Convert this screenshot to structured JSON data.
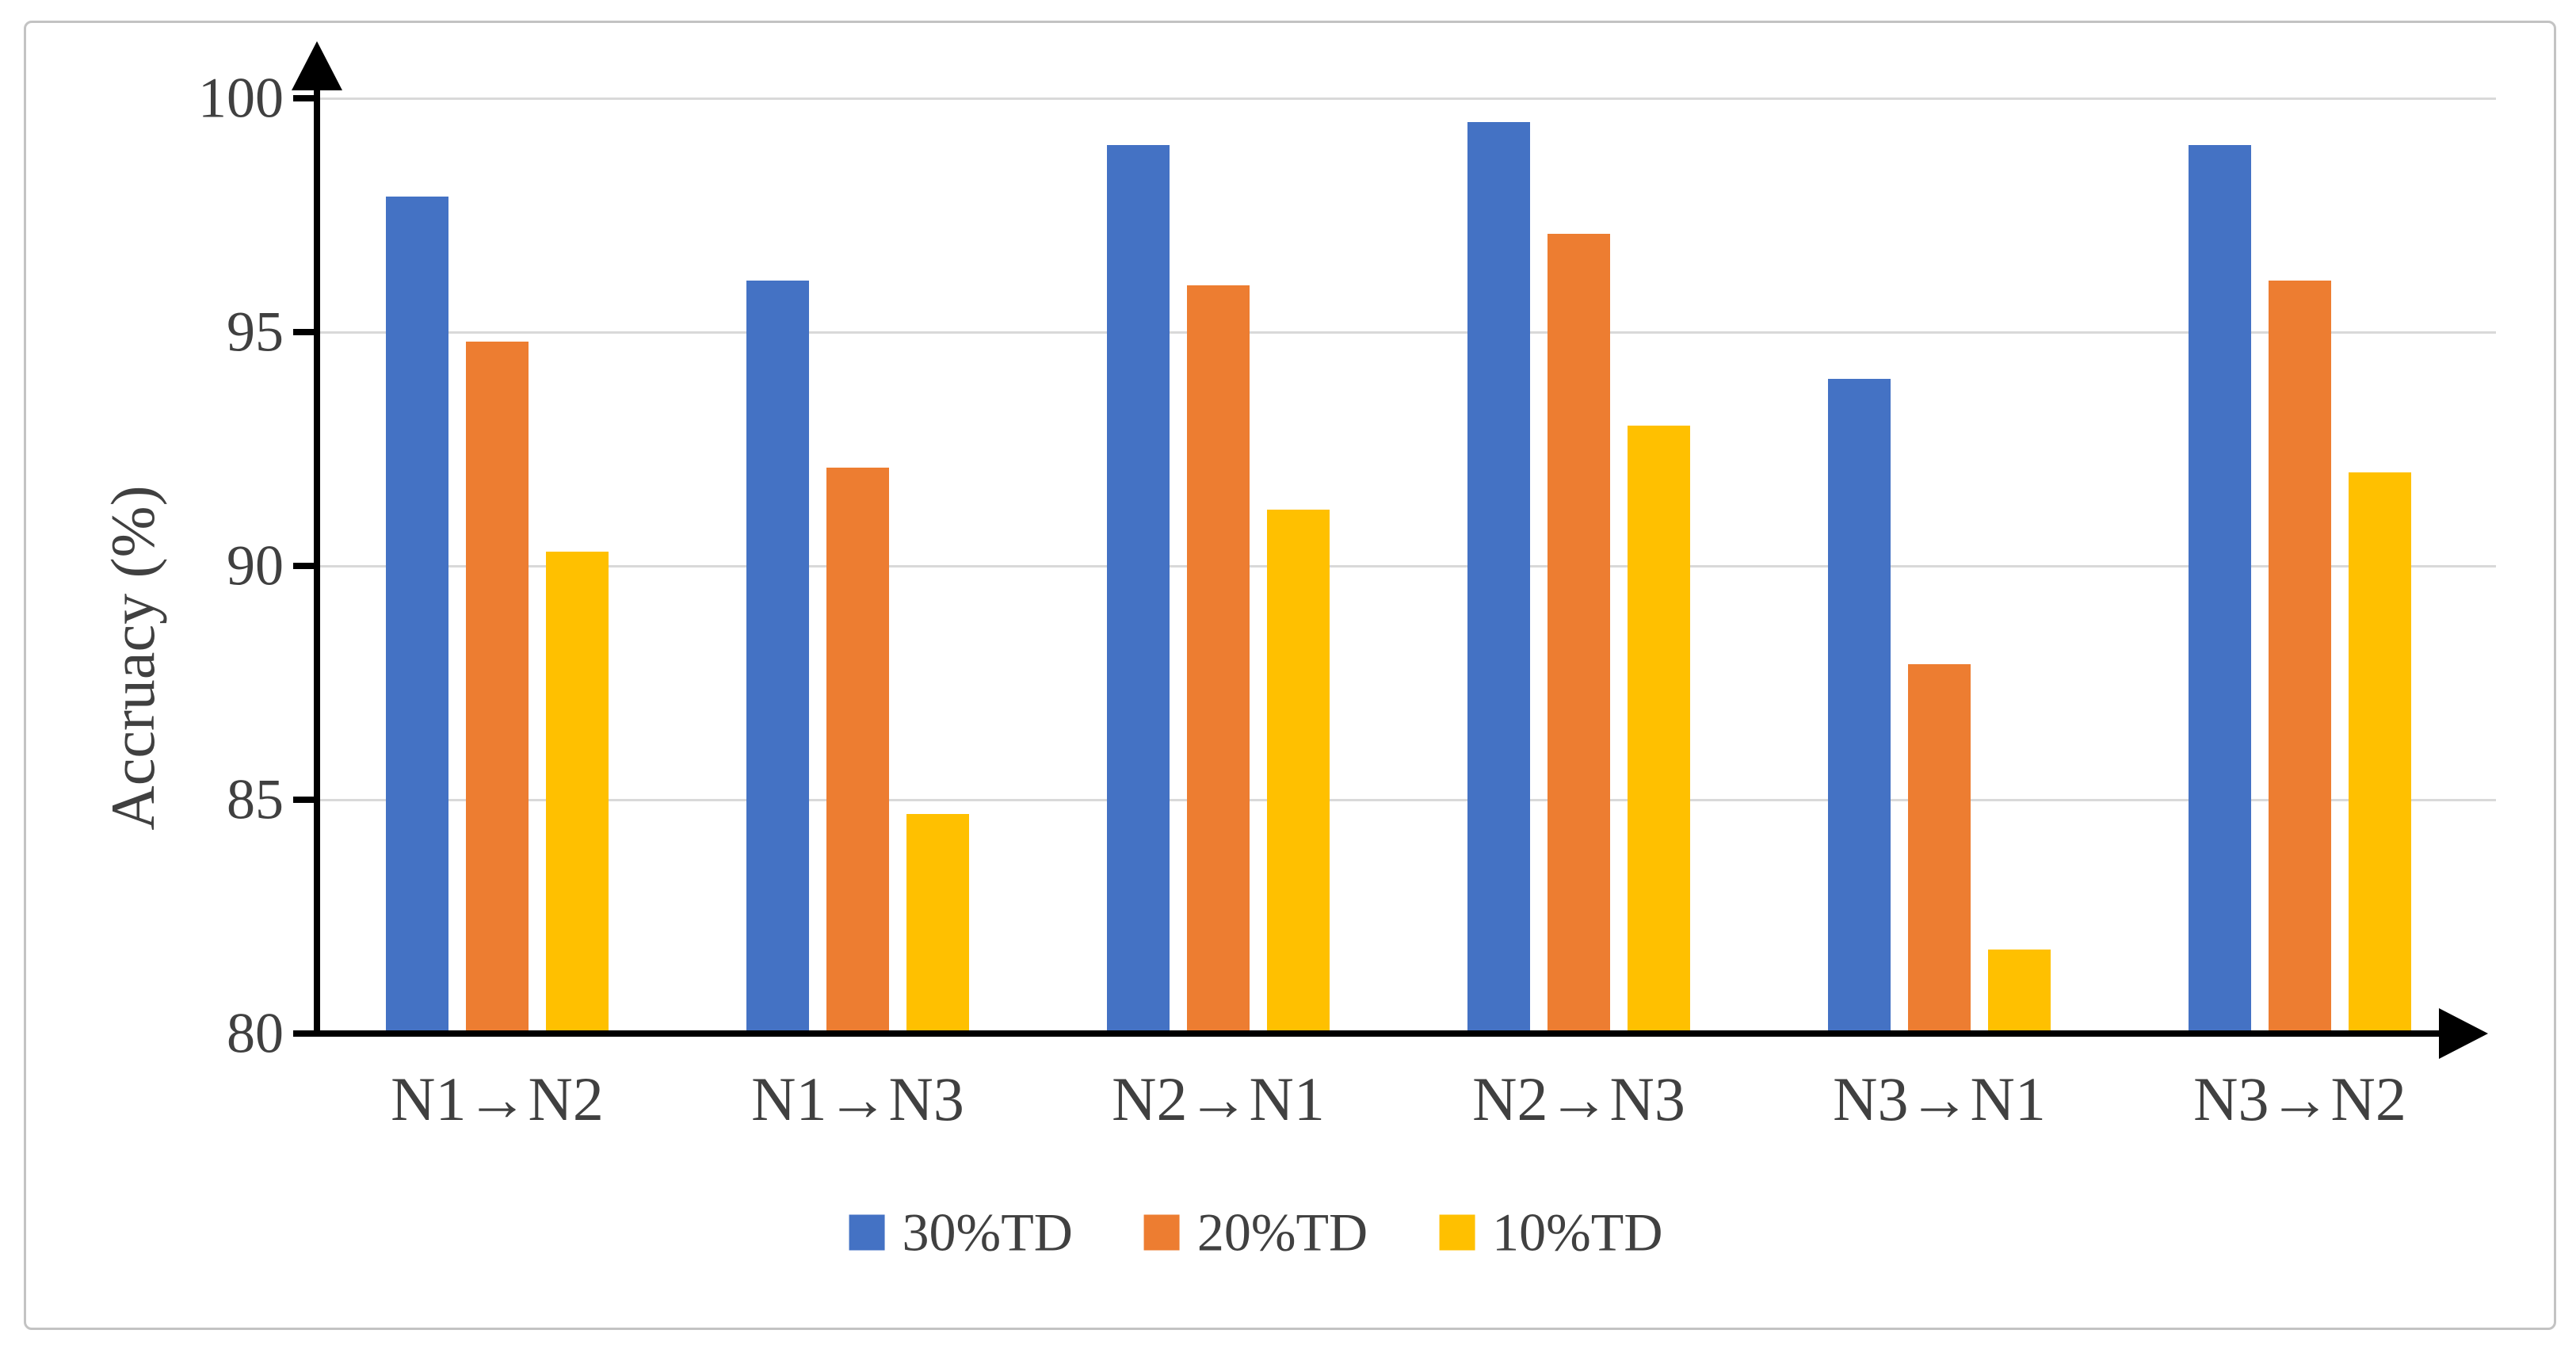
{
  "chart_data": {
    "type": "bar",
    "title": "",
    "ylabel": "Accruacy (%)",
    "xlabel": "",
    "ylim": [
      80,
      100
    ],
    "yticks": [
      100,
      95,
      90,
      85,
      80
    ],
    "grid": true,
    "legend_position": "bottom",
    "categories": [
      "N1→N2",
      "N1→N3",
      "N2→N1",
      "N2→N3",
      "N3→N1",
      "N3→N2"
    ],
    "series": [
      {
        "name": "30%TD",
        "color": "#4472C4",
        "values": [
          97.9,
          96.1,
          99.0,
          99.5,
          94.0,
          99.0
        ]
      },
      {
        "name": "20%TD",
        "color": "#ED7D31",
        "values": [
          94.8,
          92.1,
          96.0,
          97.1,
          87.9,
          96.1
        ]
      },
      {
        "name": "10%TD",
        "color": "#FFC000",
        "values": [
          90.3,
          84.7,
          91.2,
          93.0,
          81.8,
          92.0
        ]
      }
    ],
    "colors": {
      "gridline": "#d9d9d9",
      "axis": "#000000",
      "text": "#404040",
      "background": "#ffffff",
      "frame_border": "#c3c3c3"
    }
  }
}
